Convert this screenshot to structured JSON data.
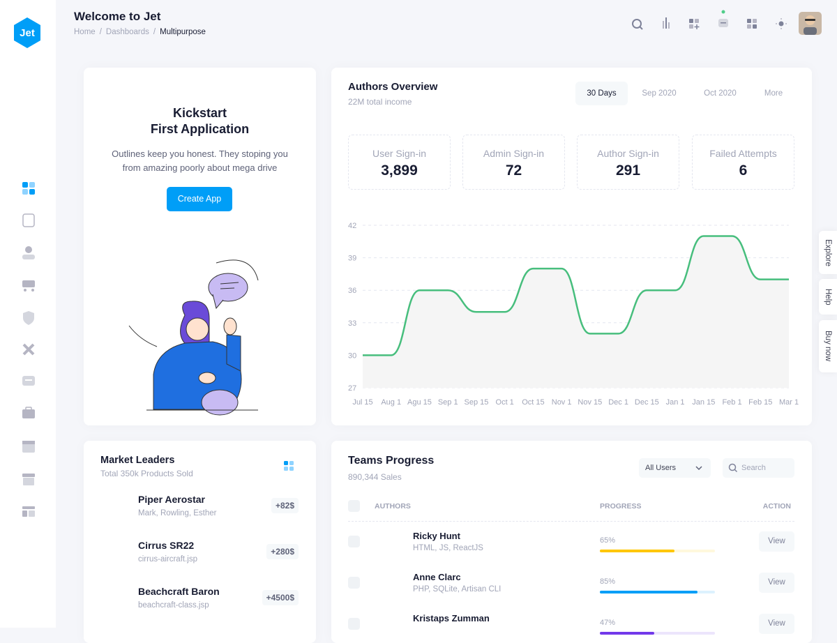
{
  "header": {
    "logo": "Jet",
    "title": "Welcome to Jet",
    "breadcrumbs": [
      "Home",
      "Dashboards",
      "Multipurpose"
    ]
  },
  "kickstart": {
    "title_lines": [
      "Kickstart",
      "First Application"
    ],
    "description": "Outlines keep you honest. They stoping you from amazing poorly about mega drive",
    "button": "Create App"
  },
  "authors_overview": {
    "title": "Authors Overview",
    "subtitle": "22M total income",
    "tabs": [
      "30 Days",
      "Sep 2020",
      "Oct 2020",
      "More"
    ],
    "stats": [
      {
        "label": "User Sign-in",
        "value": "3,899"
      },
      {
        "label": "Admin Sign-in",
        "value": "72"
      },
      {
        "label": "Author Sign-in",
        "value": "291"
      },
      {
        "label": "Failed Attempts",
        "value": "6"
      }
    ]
  },
  "chart_data": {
    "type": "line",
    "categories": [
      "Jul 15",
      "Aug 1",
      "Agu 15",
      "Sep 1",
      "Sep 15",
      "Oct 1",
      "Oct 15",
      "Nov 1",
      "Nov 15",
      "Dec 1",
      "Dec 15",
      "Jan 1",
      "Jan 15",
      "Feb 1",
      "Feb 15",
      "Mar 1"
    ],
    "values": [
      30,
      30,
      36,
      36,
      34,
      34,
      38,
      38,
      32,
      32,
      36,
      36,
      41,
      41,
      37,
      37
    ],
    "color": "#47be7d",
    "area_color": "#f5f5f5",
    "ylim": [
      27,
      42
    ],
    "yticks": [
      27,
      30,
      33,
      36,
      39,
      42
    ],
    "grid": true
  },
  "side_tabs": [
    "Explore",
    "Help",
    "Buy now"
  ],
  "market_leaders": {
    "title": "Market Leaders",
    "subtitle": "Total 350k Products Sold",
    "items": [
      {
        "name": "Piper Aerostar",
        "sub": "Mark, Rowling, Esther",
        "value": "+82$"
      },
      {
        "name": "Cirrus SR22",
        "sub": "cirrus-aircraft.jsp",
        "value": "+280$"
      },
      {
        "name": "Beachcraft Baron",
        "sub": "beachcraft-class.jsp",
        "value": "+4500$"
      }
    ]
  },
  "teams_progress": {
    "title": "Teams Progress",
    "subtitle": "890,344 Sales",
    "filter": "All Users",
    "search": "Search",
    "columns": [
      "AUTHORS",
      "PROGRESS",
      "ACTION"
    ],
    "rows": [
      {
        "name": "Ricky Hunt",
        "skills": "HTML, JS, ReactJS",
        "progress": 65,
        "progress_label": "65%",
        "color": "#ffc700",
        "action": "View"
      },
      {
        "name": "Anne Clarc",
        "skills": "PHP, SQLite, Artisan CLI",
        "progress": 85,
        "progress_label": "85%",
        "color": "#009ef7",
        "action": "View"
      },
      {
        "name": "Kristaps Zumman",
        "progress": 47,
        "progress_label": "47%",
        "color": "#7239ea",
        "action": "View"
      }
    ]
  }
}
